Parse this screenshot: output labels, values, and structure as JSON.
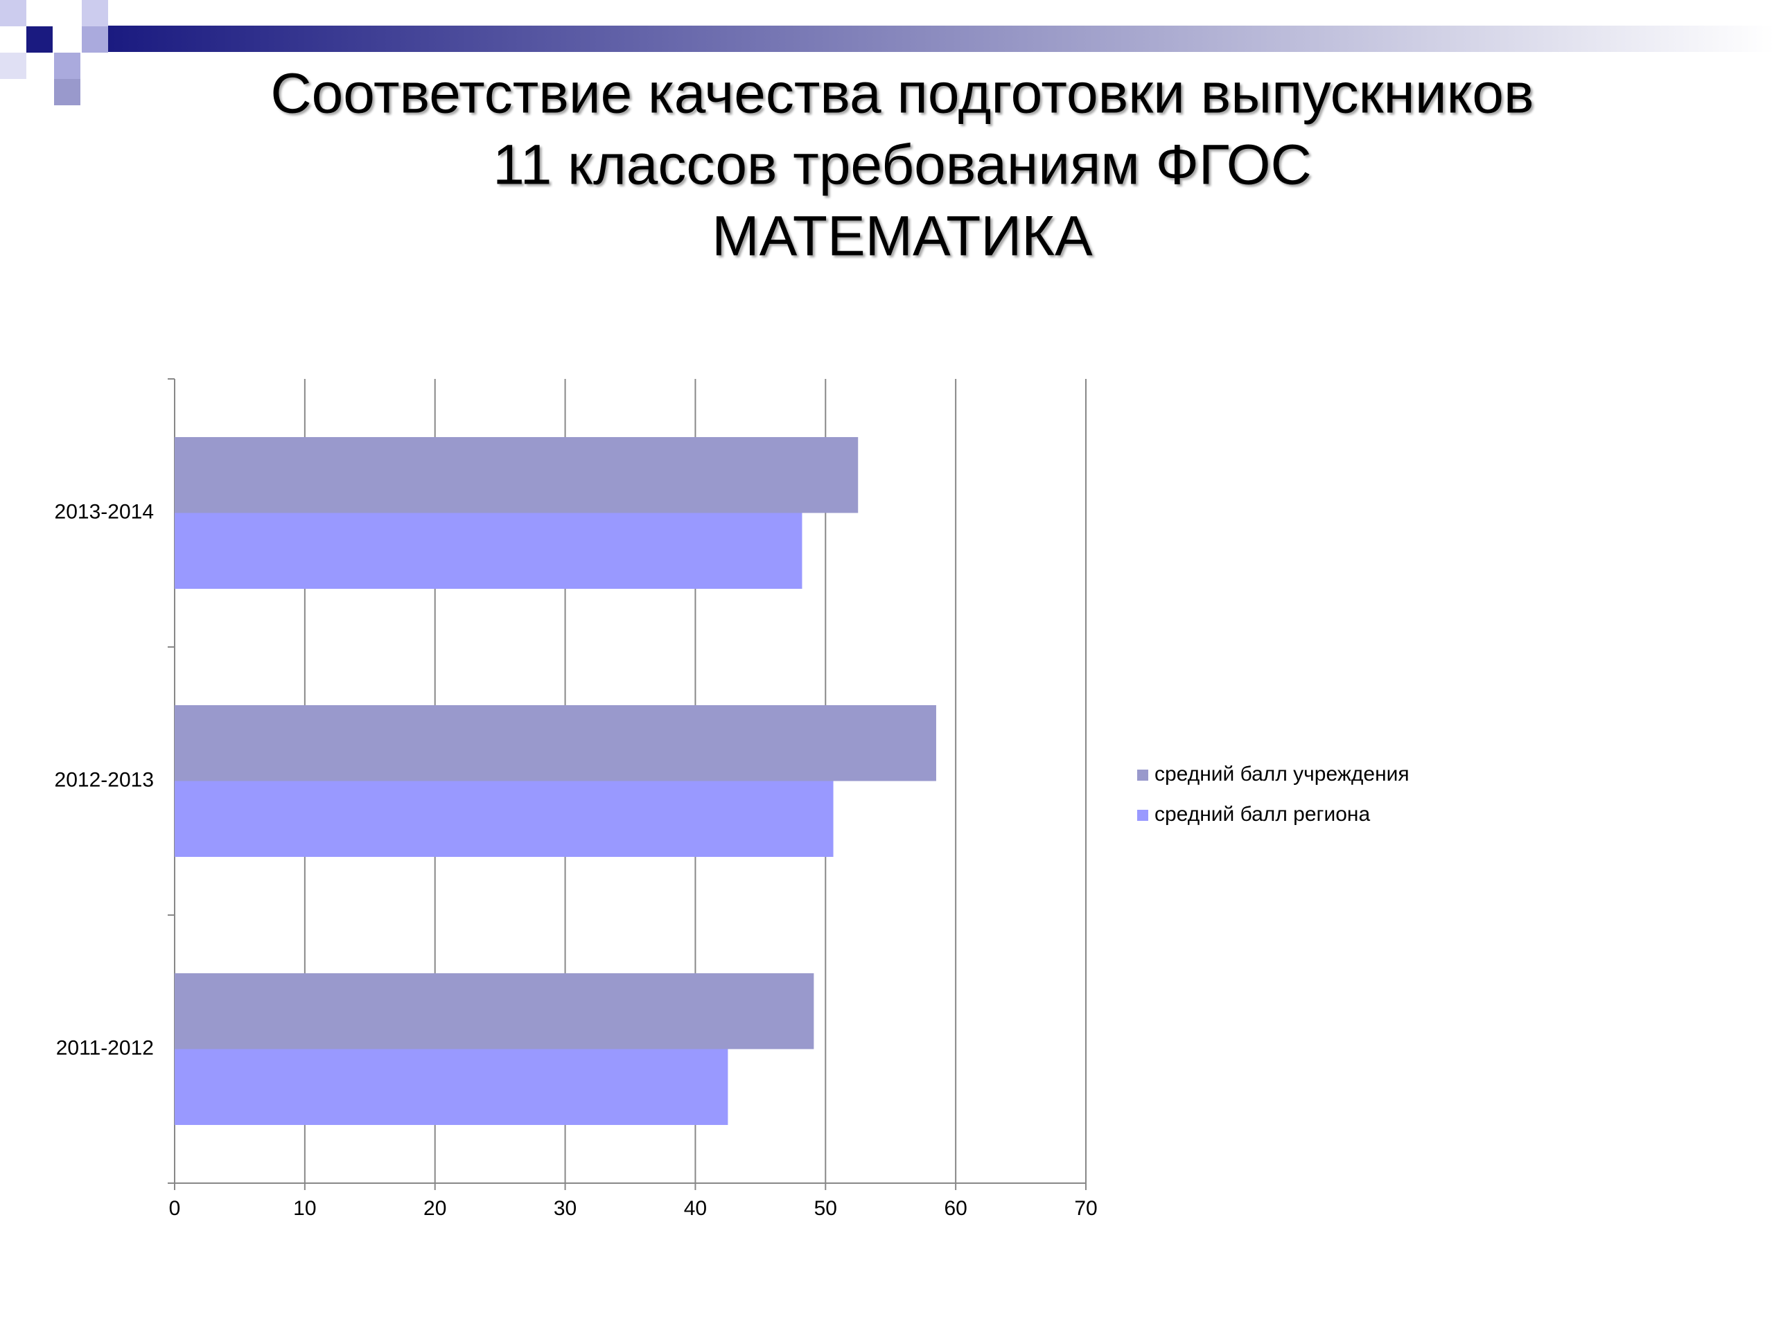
{
  "chart_data": {
    "type": "hbar",
    "title": [
      "Соответствие качества подготовки выпускников",
      "11 классов требованиям ФГОС",
      "МАТЕМАТИКА"
    ],
    "categories": [
      "2011-2012",
      "2012-2013",
      "2013-2014"
    ],
    "series": [
      {
        "name": "средний балл учреждения",
        "color": "#9999cc",
        "values": [
          49.1,
          58.5,
          52.5
        ]
      },
      {
        "name": "средний балл региона",
        "color": "#9999ff",
        "values": [
          42.5,
          50.6,
          48.2
        ]
      }
    ],
    "xlim": [
      0,
      70
    ],
    "xticks": [
      0,
      10,
      20,
      30,
      40,
      50,
      60,
      70
    ],
    "grid": true,
    "legend": "right"
  }
}
